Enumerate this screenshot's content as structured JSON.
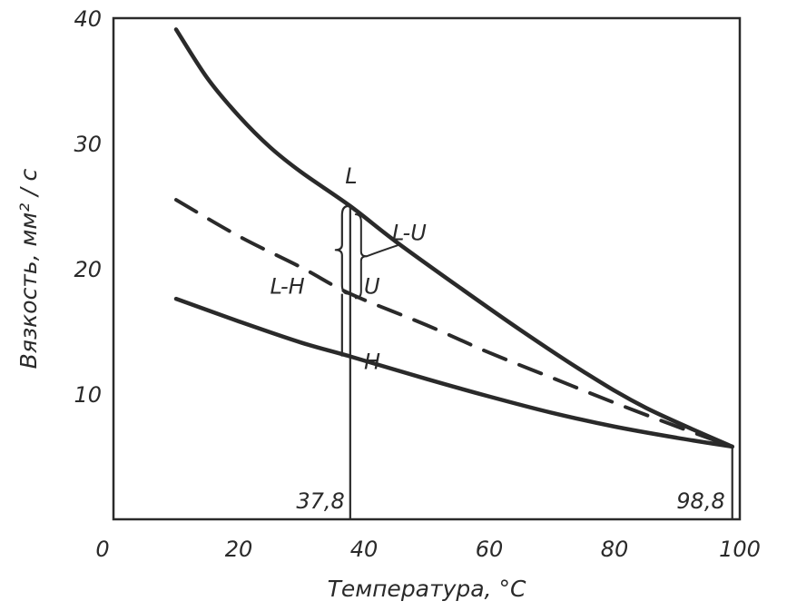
{
  "chart_data": {
    "type": "line",
    "xlabel": "Температура, °С",
    "ylabel": "Вязкость, мм² / с",
    "xlim": [
      0,
      100
    ],
    "ylim": [
      0,
      40
    ],
    "x_ticks": [
      0,
      20,
      40,
      60,
      80,
      100
    ],
    "y_ticks": [
      10,
      20,
      30,
      40
    ],
    "x_tick_labels": [
      "0",
      "20",
      "40",
      "60",
      "80",
      "100"
    ],
    "y_tick_labels": [
      "10",
      "20",
      "30",
      "40"
    ],
    "grid": false,
    "series": [
      {
        "name": "L",
        "style": "solid",
        "x": [
          10,
          15,
          20,
          25,
          30,
          37.8,
          45,
          55,
          65,
          75,
          85,
          98.8
        ],
        "y": [
          39.1,
          35.2,
          32.2,
          29.7,
          27.7,
          25.0,
          22.2,
          18.6,
          15.1,
          11.8,
          8.9,
          5.8
        ]
      },
      {
        "name": "U",
        "style": "dashed",
        "x": [
          10,
          20,
          30,
          37.8,
          50,
          60,
          70,
          80,
          90,
          98.8
        ],
        "y": [
          25.5,
          22.6,
          20.1,
          18.0,
          15.5,
          13.3,
          11.3,
          9.3,
          7.4,
          5.8
        ]
      },
      {
        "name": "H",
        "style": "solid",
        "x": [
          10,
          20,
          30,
          37.8,
          50,
          60,
          70,
          80,
          90,
          98.8
        ],
        "y": [
          17.6,
          15.8,
          14.1,
          13.0,
          11.2,
          9.8,
          8.5,
          7.4,
          6.5,
          5.8
        ]
      }
    ],
    "reference_lines": [
      {
        "x": 37.8,
        "label": "37,8"
      },
      {
        "x": 98.8,
        "label": "98,8"
      }
    ],
    "annotations": [
      {
        "text": "L",
        "x": 37.0,
        "y": 26.8
      },
      {
        "text": "L-U",
        "x": 44.5,
        "y": 22.3
      },
      {
        "text": "U",
        "x": 40.0,
        "y": 18.0
      },
      {
        "text": "L-H",
        "x": 25.0,
        "y": 18.0
      },
      {
        "text": "H",
        "x": 40.0,
        "y": 12.0
      }
    ]
  }
}
